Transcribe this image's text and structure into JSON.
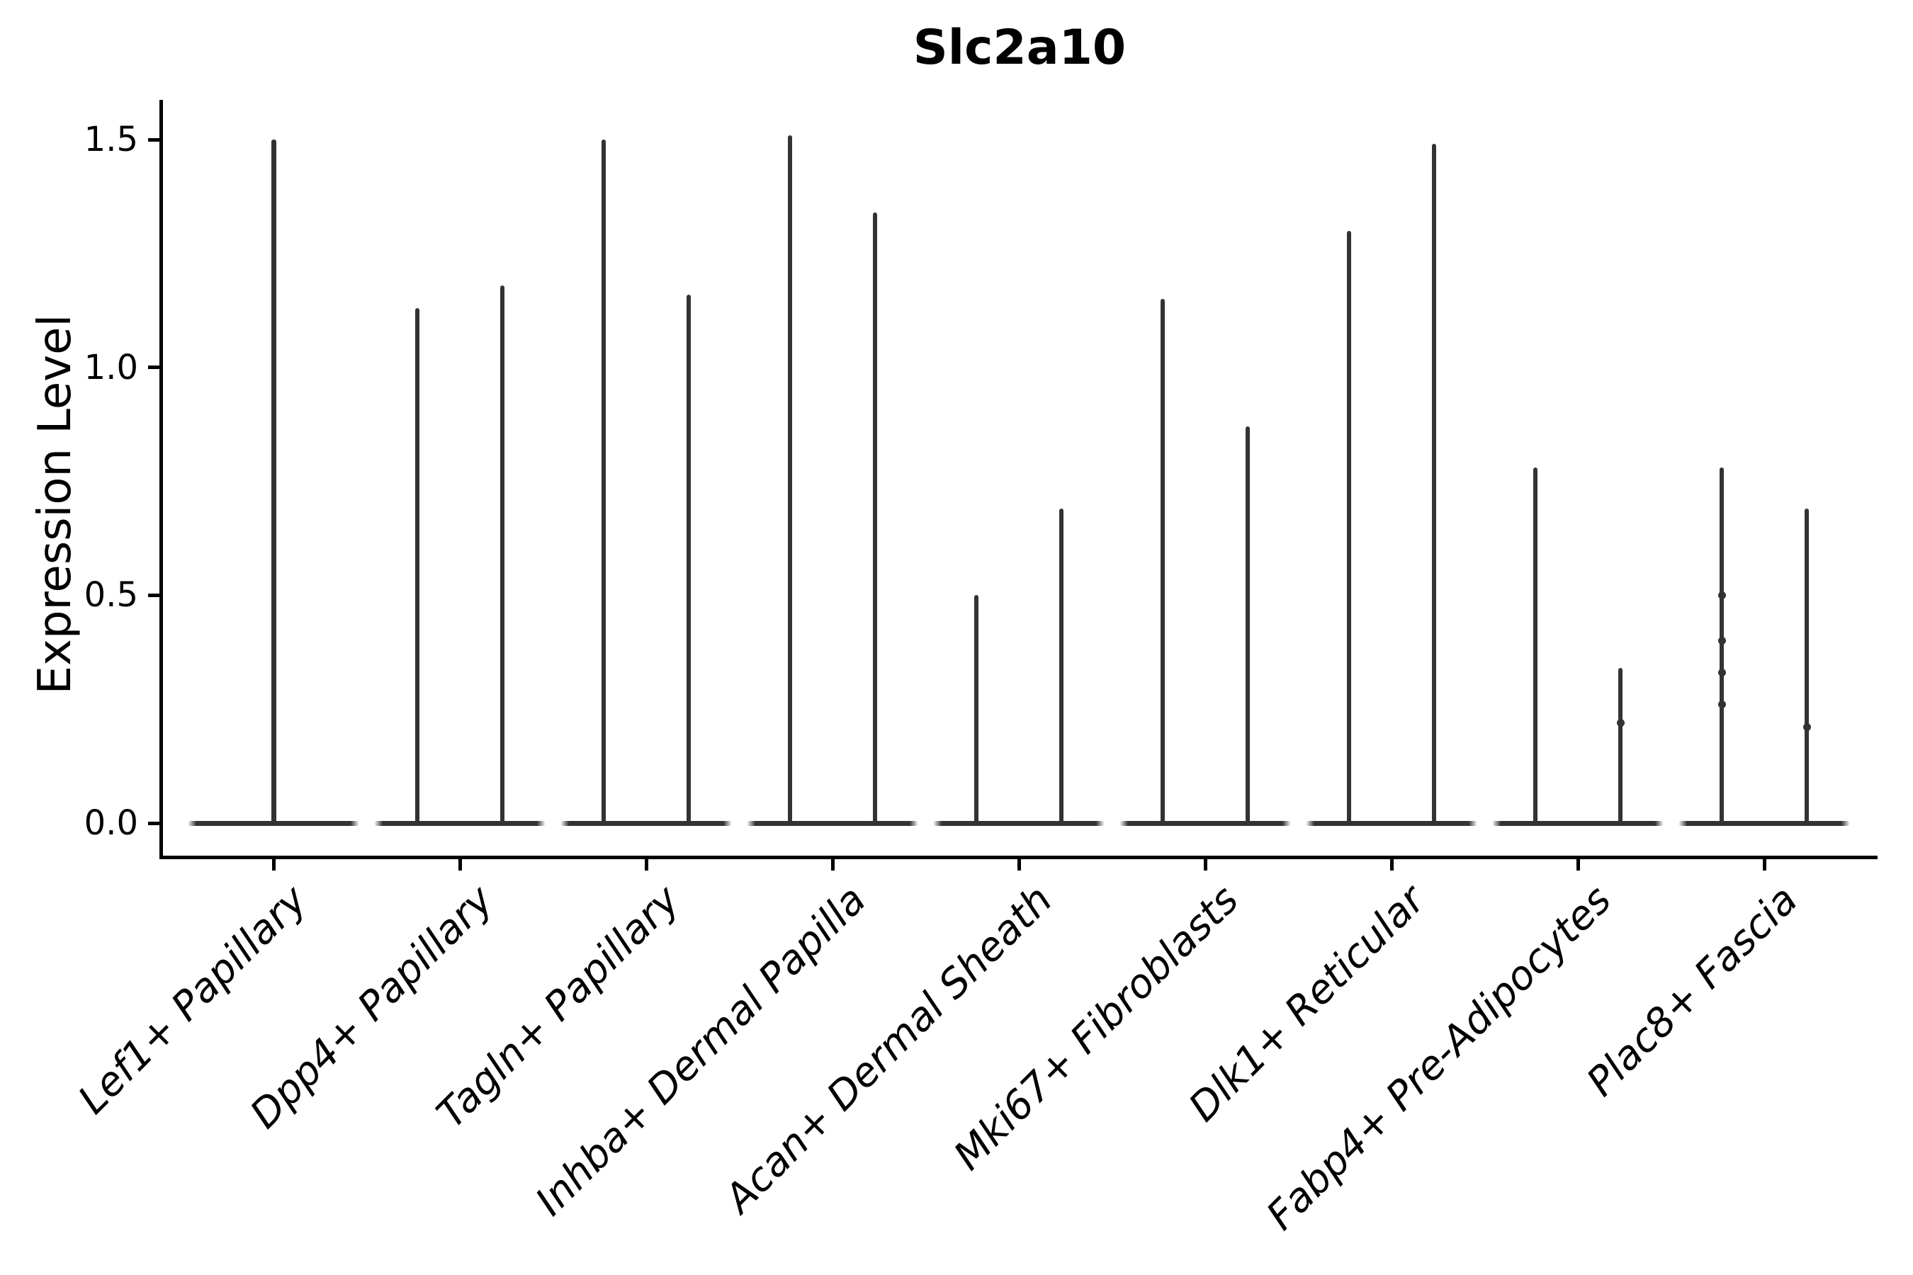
{
  "title": "Slc2a10",
  "chart_data": {
    "type": "violin",
    "title": "Slc2a10",
    "xlabel": "",
    "ylabel": "Expression Level",
    "yticks": [
      0.0,
      0.5,
      1.0,
      1.5
    ],
    "ytick_labels": [
      "0.0",
      "0.5",
      "1.0",
      "1.5"
    ],
    "ylim": [
      0,
      1.58
    ],
    "grid": "off",
    "legend": "none",
    "x_label_rotation_deg": 45,
    "x_label_style": "italic",
    "violin_color": "#333333",
    "axis_color": "#000000",
    "background_color": "#ffffff",
    "groups": [
      {
        "label": "Lef1+ Papillary",
        "spike_maxima": [
          1.5
        ],
        "knots": [
          []
        ]
      },
      {
        "label": "Dpp4+ Papillary",
        "spike_maxima": [
          1.13,
          1.18
        ],
        "knots": [
          [],
          []
        ]
      },
      {
        "label": "Tagln+ Papillary",
        "spike_maxima": [
          1.5,
          1.16
        ],
        "knots": [
          [],
          []
        ]
      },
      {
        "label": "Inhba+ Dermal Papilla",
        "spike_maxima": [
          1.51,
          1.34
        ],
        "knots": [
          [],
          []
        ]
      },
      {
        "label": "Acan+ Dermal Sheath",
        "spike_maxima": [
          0.5,
          0.69
        ],
        "knots": [
          [],
          []
        ]
      },
      {
        "label": "Mki67+ Fibroblasts",
        "spike_maxima": [
          1.15,
          0.87
        ],
        "knots": [
          [],
          []
        ]
      },
      {
        "label": "Dlk1+ Reticular",
        "spike_maxima": [
          1.3,
          1.49
        ],
        "knots": [
          [],
          []
        ]
      },
      {
        "label": "Fabp4+ Pre-Adipocytes",
        "spike_maxima": [
          0.78,
          0.34
        ],
        "knots": [
          [],
          [
            0.22
          ]
        ]
      },
      {
        "label": "Plac8+ Fascia",
        "spike_maxima": [
          0.78,
          0.69
        ],
        "knots": [
          [
            0.5,
            0.4,
            0.33,
            0.26
          ],
          [
            0.21
          ]
        ]
      }
    ]
  }
}
